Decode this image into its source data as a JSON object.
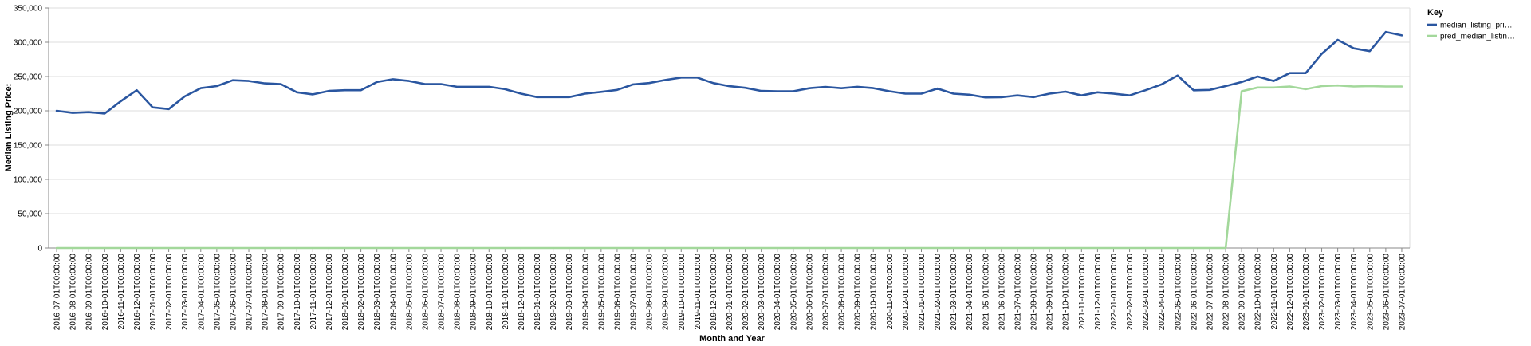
{
  "chart_data": {
    "type": "line",
    "xlabel": "Month and Year",
    "ylabel": "Median Listing Price:",
    "ylim": [
      0,
      350000
    ],
    "yticks": [
      "0",
      "50,000",
      "100,000",
      "150,000",
      "200,000",
      "250,000",
      "300,000",
      "350,000"
    ],
    "grid": true,
    "legend": {
      "title": "Key",
      "placement": "top-right",
      "entries": [
        {
          "label": "median_listing_pri…",
          "color": "#2a56a0"
        },
        {
          "label": "pred_median_listin…",
          "color": "#a3d89b"
        }
      ]
    },
    "x": [
      "2016-07-01T00:00:00",
      "2016-08-01T00:00:00",
      "2016-09-01T00:00:00",
      "2016-10-01T00:00:00",
      "2016-11-01T00:00:00",
      "2016-12-01T00:00:00",
      "2017-01-01T00:00:00",
      "2017-02-01T00:00:00",
      "2017-03-01T00:00:00",
      "2017-04-01T00:00:00",
      "2017-05-01T00:00:00",
      "2017-06-01T00:00:00",
      "2017-07-01T00:00:00",
      "2017-08-01T00:00:00",
      "2017-09-01T00:00:00",
      "2017-10-01T00:00:00",
      "2017-11-01T00:00:00",
      "2017-12-01T00:00:00",
      "2018-01-01T00:00:00",
      "2018-02-01T00:00:00",
      "2018-03-01T00:00:00",
      "2018-04-01T00:00:00",
      "2018-05-01T00:00:00",
      "2018-06-01T00:00:00",
      "2018-07-01T00:00:00",
      "2018-08-01T00:00:00",
      "2018-09-01T00:00:00",
      "2018-10-01T00:00:00",
      "2018-11-01T00:00:00",
      "2018-12-01T00:00:00",
      "2019-01-01T00:00:00",
      "2019-02-01T00:00:00",
      "2019-03-01T00:00:00",
      "2019-04-01T00:00:00",
      "2019-05-01T00:00:00",
      "2019-06-01T00:00:00",
      "2019-07-01T00:00:00",
      "2019-08-01T00:00:00",
      "2019-09-01T00:00:00",
      "2019-10-01T00:00:00",
      "2019-11-01T00:00:00",
      "2019-12-01T00:00:00",
      "2020-01-01T00:00:00",
      "2020-02-01T00:00:00",
      "2020-03-01T00:00:00",
      "2020-04-01T00:00:00",
      "2020-05-01T00:00:00",
      "2020-06-01T00:00:00",
      "2020-07-01T00:00:00",
      "2020-08-01T00:00:00",
      "2020-09-01T00:00:00",
      "2020-10-01T00:00:00",
      "2020-11-01T00:00:00",
      "2020-12-01T00:00:00",
      "2021-01-01T00:00:00",
      "2021-02-01T00:00:00",
      "2021-03-01T00:00:00",
      "2021-04-01T00:00:00",
      "2021-05-01T00:00:00",
      "2021-06-01T00:00:00",
      "2021-07-01T00:00:00",
      "2021-08-01T00:00:00",
      "2021-09-01T00:00:00",
      "2021-10-01T00:00:00",
      "2021-11-01T00:00:00",
      "2021-12-01T00:00:00",
      "2022-01-01T00:00:00",
      "2022-02-01T00:00:00",
      "2022-03-01T00:00:00",
      "2022-04-01T00:00:00",
      "2022-05-01T00:00:00",
      "2022-06-01T00:00:00",
      "2022-07-01T00:00:00",
      "2022-08-01T00:00:00",
      "2022-09-01T00:00:00",
      "2022-10-01T00:00:00",
      "2022-11-01T00:00:00",
      "2022-12-01T00:00:00",
      "2023-01-01T00:00:00",
      "2023-02-01T00:00:00",
      "2023-03-01T00:00:00",
      "2023-04-01T00:00:00",
      "2023-05-01T00:00:00",
      "2023-06-01T00:00:00",
      "2023-07-01T00:00:00"
    ],
    "series": [
      {
        "name": "median_listing_pri…",
        "color": "#2a56a0",
        "values": [
          200000,
          197000,
          198000,
          196000,
          214000,
          230000,
          205000,
          202500,
          221000,
          233000,
          236000,
          244500,
          243500,
          240000,
          239000,
          227000,
          224000,
          229000,
          230000,
          230000,
          242000,
          246000,
          243500,
          239000,
          239000,
          235000,
          235000,
          235000,
          231500,
          225000,
          220000,
          220000,
          220000,
          225000,
          227500,
          230500,
          238500,
          240500,
          244900,
          248500,
          248500,
          240500,
          235900,
          233500,
          229000,
          228500,
          228500,
          232900,
          234900,
          232900,
          235000,
          233000,
          228500,
          225000,
          225000,
          232500,
          225000,
          223500,
          219500,
          219900,
          222500,
          220000,
          225000,
          227900,
          222500,
          227000,
          225000,
          222500,
          230000,
          238500,
          251500,
          229900,
          230500,
          236000,
          242000,
          250000,
          243500,
          255000,
          255000,
          283000,
          303500,
          291000,
          287000,
          315000,
          310000
        ]
      },
      {
        "name": "pred_median_listin…",
        "color": "#a3d89b",
        "values": [
          0,
          0,
          0,
          0,
          0,
          0,
          0,
          0,
          0,
          0,
          0,
          0,
          0,
          0,
          0,
          0,
          0,
          0,
          0,
          0,
          0,
          0,
          0,
          0,
          0,
          0,
          0,
          0,
          0,
          0,
          0,
          0,
          0,
          0,
          0,
          0,
          0,
          0,
          0,
          0,
          0,
          0,
          0,
          0,
          0,
          0,
          0,
          0,
          0,
          0,
          0,
          0,
          0,
          0,
          0,
          0,
          0,
          0,
          0,
          0,
          0,
          0,
          0,
          0,
          0,
          0,
          0,
          0,
          0,
          0,
          0,
          0,
          0,
          0,
          228500,
          234000,
          234000,
          235500,
          231500,
          236000,
          237000,
          235500,
          236000,
          235500,
          235500
        ]
      }
    ]
  }
}
